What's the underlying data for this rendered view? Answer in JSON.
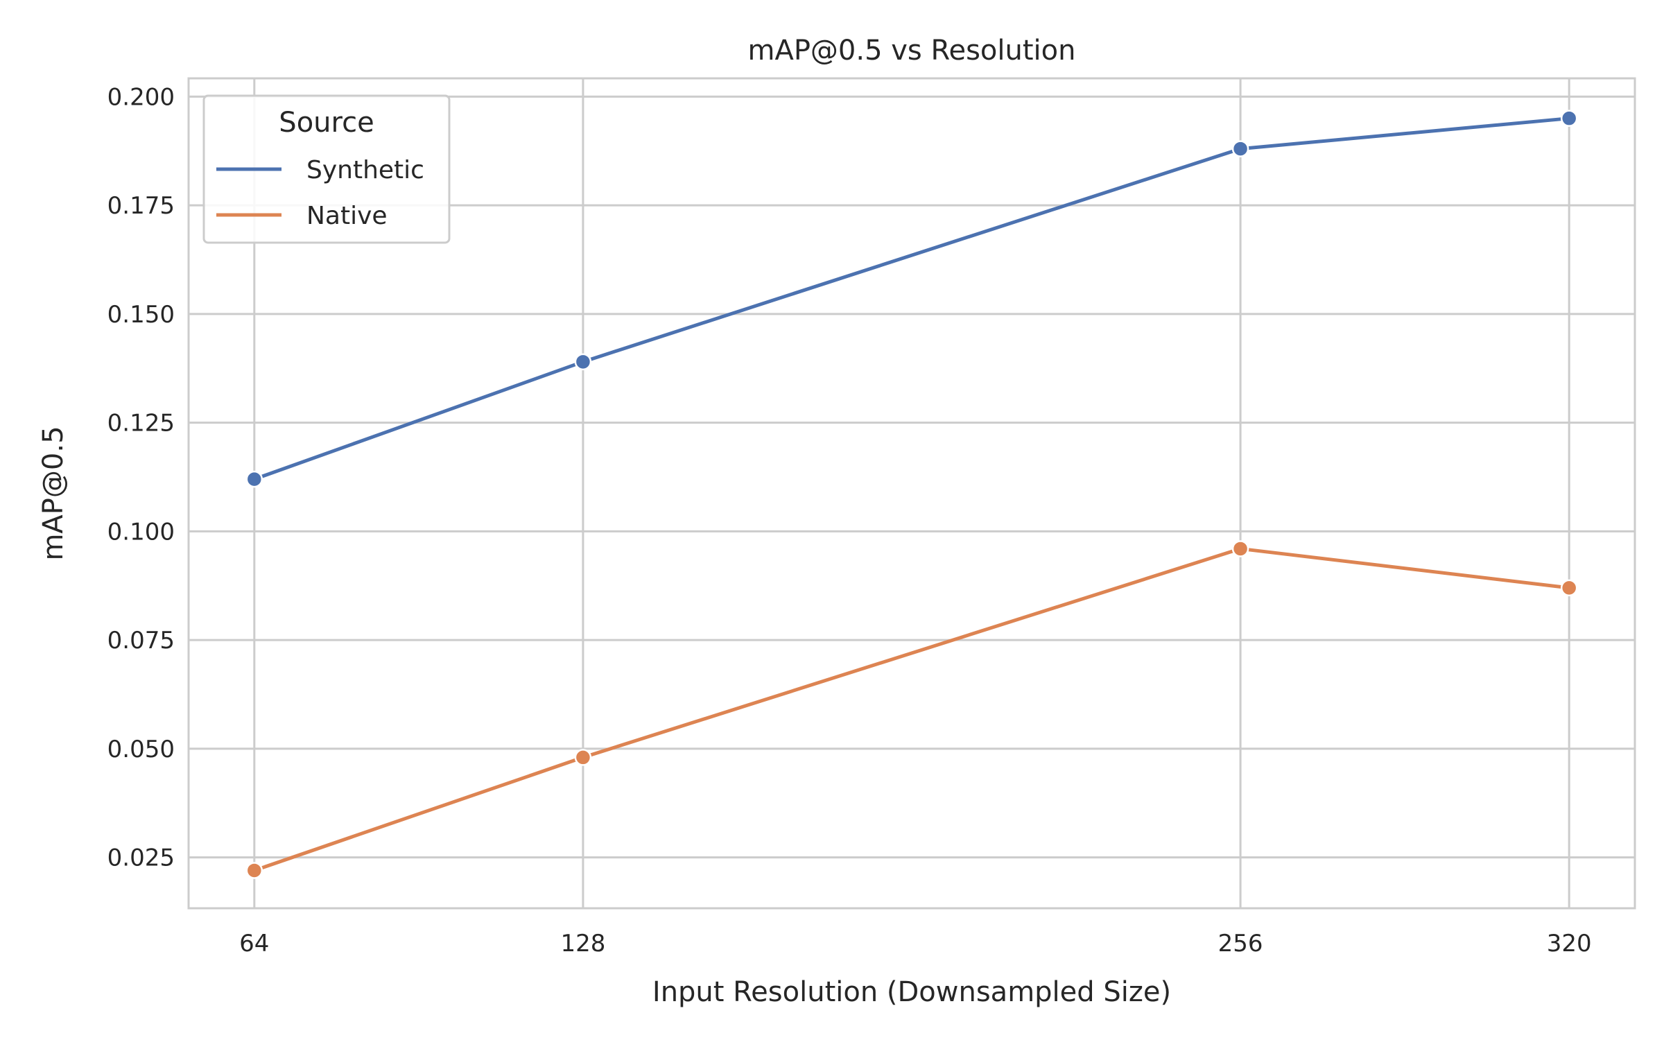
{
  "chart_data": {
    "type": "line",
    "title": "mAP@0.5 vs Resolution",
    "xlabel": "Input Resolution (Downsampled Size)",
    "ylabel": "mAP@0.5",
    "x": [
      64,
      128,
      256,
      320
    ],
    "x_tick_labels": [
      "64",
      "128",
      "256",
      "320"
    ],
    "xlim": [
      51.2,
      332.8
    ],
    "ylim": [
      0.0133,
      0.2042
    ],
    "y_ticks": [
      0.025,
      0.05,
      0.075,
      0.1,
      0.125,
      0.15,
      0.175,
      0.2
    ],
    "y_tick_labels": [
      "0.025",
      "0.050",
      "0.075",
      "0.100",
      "0.125",
      "0.150",
      "0.175",
      "0.200"
    ],
    "grid": true,
    "legend": {
      "title": "Source",
      "placement": "top-left"
    },
    "series": [
      {
        "name": "Synthetic",
        "color": "#4c72b0",
        "values": [
          0.112,
          0.139,
          0.188,
          0.195
        ]
      },
      {
        "name": "Native",
        "color": "#dd8452",
        "values": [
          0.022,
          0.048,
          0.096,
          0.087
        ]
      }
    ]
  }
}
